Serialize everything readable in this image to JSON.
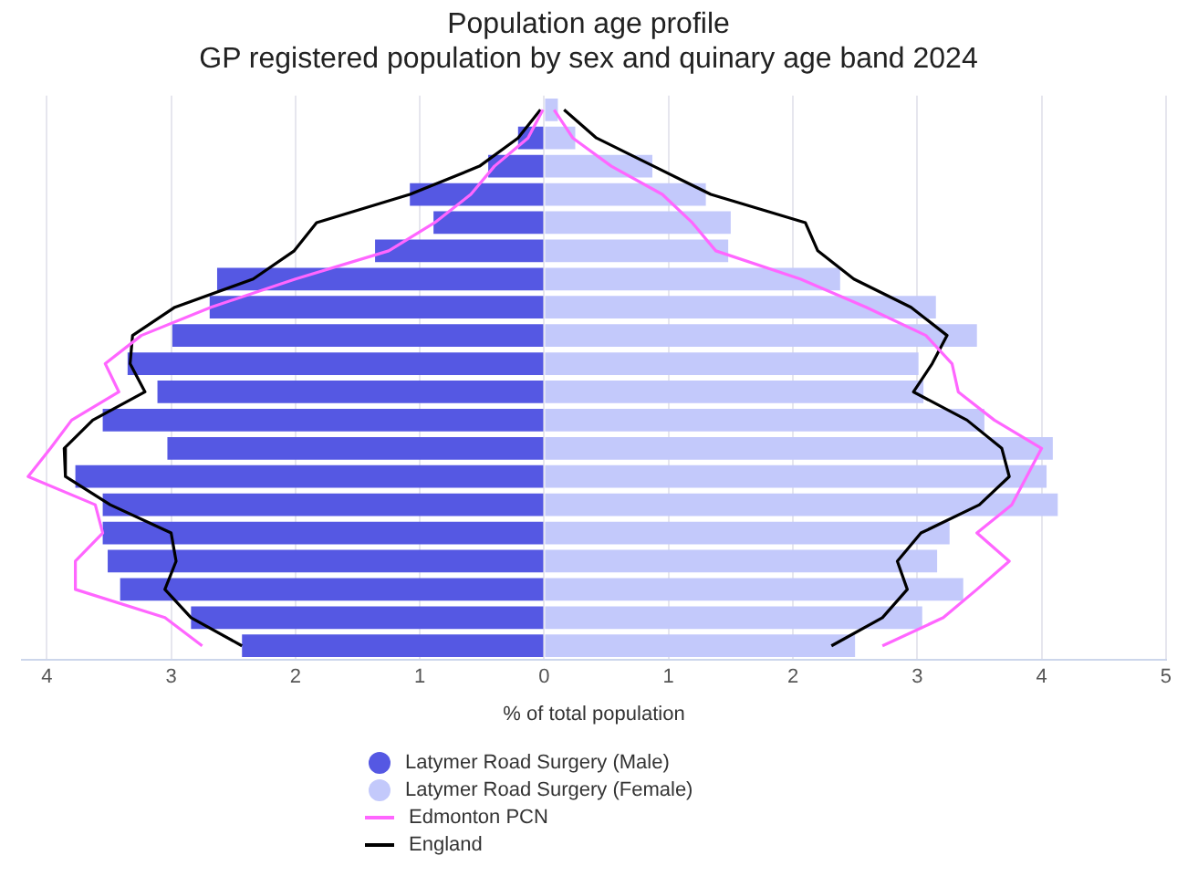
{
  "chart_data": {
    "type": "bar",
    "orientation": "horizontal",
    "title": "Population age profile",
    "subtitle": "GP registered population by sex and quinary age band 2024",
    "xlabel": "% of total population",
    "categories": [
      null,
      null,
      null,
      null,
      null,
      null,
      null,
      null,
      null,
      null,
      null,
      null,
      null,
      null,
      null,
      null,
      null,
      null,
      null,
      null
    ],
    "xlim": [
      -4.2,
      5
    ],
    "xticks": [
      {
        "value": -4,
        "label": "4"
      },
      {
        "value": -3,
        "label": "3"
      },
      {
        "value": -2,
        "label": "2"
      },
      {
        "value": -1,
        "label": "1"
      },
      0,
      1,
      2,
      3,
      4,
      5
    ],
    "grid": "x",
    "legend": "bottom",
    "tick_labels": "x",
    "stacked": true,
    "series": [
      {
        "name": "Latymer Road Surgery (Male)",
        "color": "#5558e3",
        "values": [
          0,
          -0.21,
          -0.45,
          -1.08,
          -0.89,
          -1.36,
          -2.63,
          -2.69,
          -2.99,
          -3.35,
          -3.11,
          -3.55,
          -3.03,
          -3.77,
          -3.55,
          -3.55,
          -3.51,
          -3.41,
          -2.84,
          -2.43
        ]
      },
      {
        "name": "Latymer Road Surgery (Female)",
        "color": "#c3c9fb",
        "values": [
          0.11,
          0.25,
          0.87,
          1.3,
          1.5,
          1.48,
          2.38,
          3.15,
          3.48,
          3.01,
          3.05,
          3.54,
          4.09,
          4.04,
          4.13,
          3.26,
          3.16,
          3.37,
          3.04,
          2.5
        ]
      },
      {
        "name": "Edmonton PCN",
        "type": "line",
        "color": "#ff66ff",
        "values": [
          -0.01,
          -0.13,
          -0.4,
          -0.59,
          -0.88,
          -1.25,
          -2.0,
          -2.68,
          -3.24,
          -3.53,
          -3.42,
          -3.8,
          -3.97,
          -4.15,
          -3.61,
          -3.55,
          -3.77,
          -3.77,
          -3.05,
          -2.75
        ]
      },
      {
        "type": "line",
        "color": "#ff66ff",
        "values": [
          0.08,
          0.23,
          0.54,
          0.95,
          1.19,
          1.38,
          2.06,
          2.59,
          3.07,
          3.28,
          3.33,
          3.62,
          4.0,
          3.88,
          3.76,
          3.48,
          3.74,
          3.48,
          3.21,
          2.72
        ]
      },
      {
        "name": "England",
        "type": "line",
        "color": "#000000",
        "values": [
          -0.03,
          -0.21,
          -0.52,
          -1.08,
          -1.83,
          -2.01,
          -2.34,
          -2.97,
          -3.31,
          -3.33,
          -3.21,
          -3.63,
          -3.86,
          -3.85,
          -3.49,
          -3.0,
          -2.96,
          -3.05,
          -2.84,
          -2.43
        ]
      },
      {
        "type": "line",
        "color": "#000000",
        "values": [
          0.16,
          0.42,
          0.88,
          1.34,
          2.1,
          2.2,
          2.49,
          2.95,
          3.24,
          3.12,
          2.97,
          3.4,
          3.68,
          3.74,
          3.5,
          3.03,
          2.84,
          2.92,
          2.72,
          2.31
        ]
      }
    ]
  }
}
